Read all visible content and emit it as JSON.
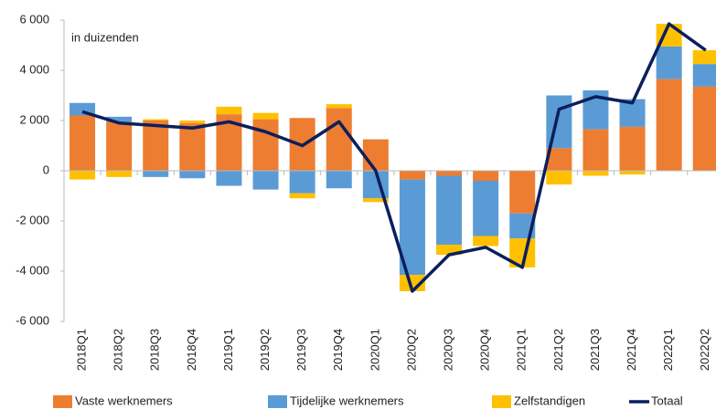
{
  "chart_data": {
    "type": "bar",
    "stacked": true,
    "annotation": "in duizenden",
    "categories": [
      "2018Q1",
      "2018Q2",
      "2018Q3",
      "2018Q4",
      "2019Q1",
      "2019Q2",
      "2019Q3",
      "2019Q4",
      "2020Q1",
      "2020Q2",
      "2020Q3",
      "2020Q4",
      "2021Q1",
      "2021Q2",
      "2021Q3",
      "2021Q4",
      "2022Q1",
      "2022Q2"
    ],
    "series": [
      {
        "name": "Vaste werknemers",
        "color": "#ED7D31",
        "values": [
          2200,
          1950,
          2000,
          1900,
          2250,
          2050,
          2100,
          2500,
          1250,
          -350,
          -200,
          -400,
          -1700,
          900,
          1650,
          1750,
          3650,
          3350
        ]
      },
      {
        "name": "Tijdelijke werknemers",
        "color": "#5B9BD5",
        "values": [
          500,
          200,
          -250,
          -300,
          -600,
          -750,
          -900,
          -700,
          -1100,
          -3800,
          -2750,
          -2200,
          -1000,
          2100,
          1550,
          1100,
          1300,
          900
        ]
      },
      {
        "name": "Zelfstandigen",
        "color": "#FFC000",
        "values": [
          -350,
          -250,
          50,
          100,
          300,
          250,
          -200,
          150,
          -150,
          -650,
          -400,
          -400,
          -1150,
          -550,
          -200,
          -150,
          900,
          550
        ]
      },
      {
        "name": "Totaal",
        "type": "line",
        "color": "#0B1F5C",
        "values": [
          2350,
          1900,
          1800,
          1700,
          1950,
          1550,
          1000,
          1950,
          0,
          -4800,
          -3350,
          -3050,
          -3850,
          2450,
          2950,
          2700,
          5850,
          4800
        ]
      }
    ],
    "ylim": [
      -6000,
      6000
    ],
    "yticks": [
      {
        "value": -6000,
        "label": "-6 000"
      },
      {
        "value": -4000,
        "label": "-4 000"
      },
      {
        "value": -2000,
        "label": "-2 000"
      },
      0,
      {
        "value": 2000,
        "label": "2 000"
      },
      {
        "value": 4000,
        "label": "4 000"
      },
      {
        "value": 6000,
        "label": "6 000"
      }
    ],
    "grid": false,
    "legend": "bottom"
  }
}
